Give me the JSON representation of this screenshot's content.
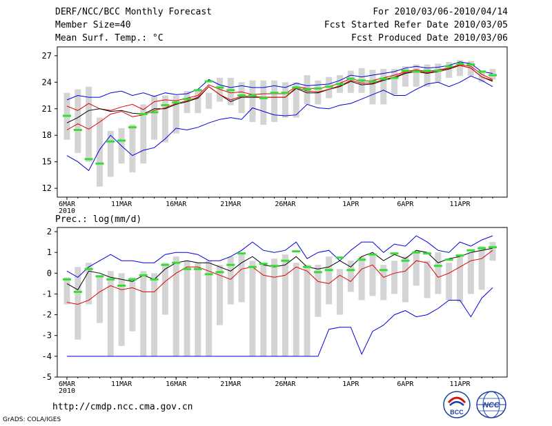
{
  "header": {
    "left": [
      "DERF/NCC/BCC Monthly Forecast",
      "Member Size=40",
      "Mean Surf. Temp.: °C"
    ],
    "right": [
      "For 2010/03/06-2010/04/14",
      "Fcst Started Refer Date 2010/03/05",
      "Fcst Produced Date 2010/03/06"
    ]
  },
  "footer": {
    "url": "http://cmdp.ncc.cma.gov.cn",
    "credit": "GrADS: COLA/IGES",
    "logo_left_text": "BCC",
    "logo_right_text": "NCC"
  },
  "colors": {
    "box": "#d4d4d4",
    "mean": "#000000",
    "red": "#e00000",
    "blue": "#0000dd",
    "green": "#33dd33"
  },
  "chart_data": [
    {
      "type": "box-forecast",
      "title": "Mean Surf. Temp.: °C",
      "ylim": [
        11,
        28
      ],
      "yticks": [
        12,
        15,
        18,
        21,
        24,
        27
      ],
      "x": [
        "2010-03-06",
        "2010-03-07",
        "2010-03-08",
        "2010-03-09",
        "2010-03-10",
        "2010-03-11",
        "2010-03-12",
        "2010-03-13",
        "2010-03-14",
        "2010-03-15",
        "2010-03-16",
        "2010-03-17",
        "2010-03-18",
        "2010-03-19",
        "2010-03-20",
        "2010-03-21",
        "2010-03-22",
        "2010-03-23",
        "2010-03-24",
        "2010-03-25",
        "2010-03-26",
        "2010-03-27",
        "2010-03-28",
        "2010-03-29",
        "2010-03-30",
        "2010-03-31",
        "2010-04-01",
        "2010-04-02",
        "2010-04-03",
        "2010-04-04",
        "2010-04-05",
        "2010-04-06",
        "2010-04-07",
        "2010-04-08",
        "2010-04-09",
        "2010-04-10",
        "2010-04-11",
        "2010-04-12",
        "2010-04-13",
        "2010-04-14"
      ],
      "xtick_labels": [
        [
          "6MAR",
          "2010"
        ],
        [
          "11MAR"
        ],
        [
          "16MAR"
        ],
        [
          "21MAR"
        ],
        [
          "26MAR"
        ],
        [
          "1APR"
        ],
        [
          "6APR"
        ],
        [
          "11APR"
        ]
      ],
      "xtick_dates": [
        "2010-03-06",
        "2010-03-11",
        "2010-03-16",
        "2010-03-21",
        "2010-03-26",
        "2010-04-01",
        "2010-04-06",
        "2010-04-11"
      ],
      "box_low": [
        17.5,
        16,
        15,
        12.2,
        13.3,
        14.8,
        13.8,
        14.8,
        17.5,
        17.2,
        18.2,
        20.5,
        20.5,
        21,
        21.8,
        21.4,
        20.5,
        19.5,
        19.2,
        19.5,
        20,
        20,
        21.5,
        21.5,
        22.2,
        22.8,
        22.8,
        22.8,
        21.5,
        21.5,
        22.6,
        23.5,
        23.5,
        23.5,
        24,
        24.5,
        24.7,
        24.7,
        24,
        24.3
      ],
      "box_high": [
        22.8,
        23.2,
        23.5,
        20,
        18.5,
        18.8,
        19.2,
        21.5,
        22.5,
        22.5,
        22.5,
        23,
        23,
        22.8,
        24.5,
        24.5,
        24,
        24.2,
        24.2,
        24.2,
        24,
        24,
        24.8,
        24.2,
        24.6,
        24.8,
        25.3,
        25.6,
        25.4,
        25.5,
        25.5,
        25.8,
        26,
        26,
        26.1,
        26.3,
        26.5,
        26.4,
        25.2,
        25.5
      ],
      "ensemble_marks": [
        20.2,
        18.6,
        15.3,
        14.8,
        17.3,
        17.4,
        18.9,
        20.4,
        20.6,
        21.4,
        21.7,
        22.1,
        23.1,
        24.1,
        23.4,
        23.1,
        22.5,
        22.5,
        22.2,
        22.8,
        22.8,
        23.4,
        23.2,
        23.3,
        23.5,
        23.8,
        24.4,
        24.2,
        24.1,
        24.4,
        24.5,
        25.3,
        25.2,
        25.3,
        25.3,
        25.8,
        26.1,
        26,
        25.2,
        24.8
      ],
      "series": [
        {
          "role": "upper",
          "values": [
            22,
            22.5,
            22.3,
            22.3,
            22.8,
            23,
            22.5,
            22.8,
            22.4,
            22.8,
            22.6,
            22.7,
            23.2,
            24.3,
            23.7,
            23.4,
            23.6,
            23.4,
            23.4,
            23.6,
            23.4,
            23.9,
            23.6,
            23.7,
            23.8,
            24.2,
            24.8,
            24.6,
            24.8,
            25,
            25.2,
            25.6,
            25.8,
            25.6,
            25.7,
            25.9,
            26.3,
            26.1,
            25.2,
            25
          ]
        },
        {
          "role": "red",
          "values": [
            21.3,
            20.8,
            21.6,
            21,
            20.8,
            21.2,
            21.5,
            20.9,
            21.8,
            22,
            21.9,
            22.2,
            22.5,
            23.7,
            23.2,
            22.8,
            22.9,
            22.6,
            22.7,
            22.7,
            22.7,
            23.5,
            23.3,
            23.3,
            23.5,
            23.9,
            24.4,
            24.1,
            24.2,
            24.5,
            24.8,
            25.2,
            25.4,
            25.2,
            25.4,
            25.6,
            26,
            25.8,
            24.9,
            24.3
          ]
        },
        {
          "role": "mean",
          "values": [
            19.4,
            20,
            20.8,
            21,
            20.7,
            20.8,
            20.5,
            20.4,
            21,
            21,
            21.5,
            21.8,
            22.2,
            23.5,
            22.6,
            21.8,
            22.3,
            22.3,
            22.3,
            22.3,
            22.3,
            23.3,
            22.8,
            22.8,
            23.2,
            23.5,
            24.1,
            23.7,
            23.8,
            24.2,
            24.5,
            25,
            25.2,
            25,
            25.2,
            25.5,
            25.9,
            25.6,
            24.6,
            24.1
          ]
        },
        {
          "role": "red2",
          "values": [
            18.6,
            19.3,
            18.7,
            19.5,
            20.4,
            20.7,
            20.1,
            20.3,
            20.8,
            21.1,
            21.6,
            21.9,
            22.3,
            23.5,
            22.6,
            22,
            22.4,
            22.4,
            22.3,
            22.3,
            22.3,
            23.4,
            23,
            22.9,
            23.2,
            23.6,
            24.2,
            23.9,
            23.9,
            24.3,
            24.6,
            25.1,
            25.3,
            25.1,
            25.3,
            25.6,
            25.9,
            25.6,
            24.6,
            24.2
          ]
        },
        {
          "role": "lower",
          "values": [
            15.7,
            15,
            14,
            16.4,
            18,
            16.8,
            15.7,
            16.3,
            16.6,
            17.6,
            18.8,
            18.6,
            18.9,
            19.4,
            19.8,
            20,
            19.8,
            21.1,
            20.7,
            20.3,
            20.2,
            20.3,
            21.5,
            21.1,
            21,
            21.4,
            21.6,
            22.1,
            22.6,
            23.1,
            22.5,
            22.5,
            23.2,
            23.8,
            24,
            23.5,
            24,
            24.7,
            24.2,
            23.5
          ]
        }
      ]
    },
    {
      "type": "box-forecast",
      "title": "Prec.: log(mm/d)",
      "ylim": [
        -5,
        2.2
      ],
      "yticks": [
        -5,
        -4,
        -3,
        -2,
        -1,
        0,
        1,
        2
      ],
      "xtick_labels": [
        [
          "6MAR",
          "2010"
        ],
        [
          "11MAR"
        ],
        [
          "16MAR"
        ],
        [
          "21MAR"
        ],
        [
          "26MAR"
        ],
        [
          "1APR"
        ],
        [
          "6APR"
        ],
        [
          "11APR"
        ]
      ],
      "xtick_dates": [
        "2010-03-06",
        "2010-03-11",
        "2010-03-16",
        "2010-03-21",
        "2010-03-26",
        "2010-04-01",
        "2010-04-06",
        "2010-04-11"
      ],
      "box_low": [
        -1.5,
        -3.2,
        -1.5,
        -2.4,
        -4,
        -3.5,
        -2.8,
        -4,
        -4,
        -2,
        -4,
        -4,
        -4,
        -4,
        -2.5,
        -1.5,
        -1.4,
        -4,
        -4,
        -4,
        -4,
        -4,
        -4,
        -2.1,
        -1.5,
        -2,
        -0.9,
        -1.3,
        -1.1,
        -1.3,
        -1,
        -1.4,
        -0.6,
        -1.2,
        -1,
        -1.3,
        -1.4,
        -1,
        -0.8,
        0.6
      ],
      "box_high": [
        -0.2,
        0.3,
        0.5,
        -0.1,
        0.1,
        0,
        -0.2,
        0.1,
        0,
        0.5,
        0.8,
        0.6,
        0.5,
        0.6,
        0.4,
        0.8,
        0.9,
        0.6,
        0.5,
        0.7,
        0.9,
        0.5,
        0.4,
        0.4,
        0.8,
        0.2,
        0.6,
        0.8,
        0.9,
        0.4,
        0.6,
        0.8,
        1,
        0.6,
        1,
        0.5,
        0.9,
        1,
        1.3,
        1.5
      ],
      "ensemble_marks": [
        -0.3,
        -0.9,
        0.2,
        -0.15,
        -0.3,
        -0.6,
        -0.3,
        -0.1,
        -0.3,
        0.4,
        0.5,
        0.2,
        0.2,
        -0.05,
        0.05,
        0.4,
        0.95,
        0.3,
        0.45,
        0.35,
        0.6,
        1.05,
        0.3,
        0.05,
        0.15,
        0.75,
        0.15,
        0.65,
        0.9,
        0.15,
        0.95,
        0.6,
        1,
        0.95,
        0.35,
        0.65,
        0.85,
        1.1,
        1.2,
        1.25
      ],
      "series": [
        {
          "role": "upper",
          "values": [
            0.1,
            -0.2,
            0.3,
            0.6,
            0.9,
            0.6,
            0.6,
            0.5,
            0.5,
            0.9,
            1,
            1,
            0.9,
            0.6,
            0.6,
            0.8,
            1.1,
            1.5,
            1.1,
            1,
            1.1,
            1.5,
            0.7,
            1,
            1.1,
            0.6,
            1.1,
            1.5,
            1.5,
            1,
            1.4,
            1.3,
            1.8,
            1.5,
            1.1,
            1,
            1.5,
            1.3,
            1.6,
            1.8
          ]
        },
        {
          "role": "mean",
          "values": [
            -0.5,
            -0.8,
            0.1,
            0,
            -0.2,
            -0.3,
            -0.4,
            -0.1,
            -0.3,
            0.2,
            0.5,
            0.6,
            0.5,
            0.5,
            0.3,
            0.1,
            0.5,
            0.8,
            0.4,
            0.3,
            0.4,
            0.8,
            0.3,
            0.2,
            0.3,
            0.6,
            0.3,
            0.8,
            1,
            0.6,
            0.9,
            0.7,
            1.1,
            1,
            0.5,
            0.7,
            0.8,
            1,
            1.1,
            1.2
          ]
        },
        {
          "role": "red",
          "values": [
            -1.4,
            -1.5,
            -1.3,
            -0.9,
            -0.6,
            -0.8,
            -0.7,
            -0.9,
            -0.9,
            -0.4,
            0,
            0.3,
            0.3,
            0.1,
            -0.1,
            -0.3,
            0.2,
            0.3,
            -0.1,
            -0.2,
            -0.1,
            0.3,
            0.1,
            -0.4,
            -0.5,
            -0.1,
            -0.4,
            0.2,
            0.4,
            -0.2,
            0,
            0.1,
            0.6,
            0.5,
            -0.2,
            0,
            0.3,
            0.6,
            0.7,
            1.1
          ]
        },
        {
          "role": "lower",
          "values": [
            -4,
            -4,
            -4,
            -4,
            -4,
            -4,
            -4,
            -4,
            -4,
            -4,
            -4,
            -4,
            -4,
            -4,
            -4,
            -4,
            -4,
            -4,
            -4,
            -4,
            -4,
            -4,
            -4,
            -4,
            -2.7,
            -2.6,
            -2.6,
            -3.9,
            -2.8,
            -2.5,
            -2,
            -1.8,
            -2.1,
            -2,
            -1.7,
            -1.3,
            -1.3,
            -2.1,
            -1.2,
            -0.7
          ]
        }
      ]
    }
  ]
}
